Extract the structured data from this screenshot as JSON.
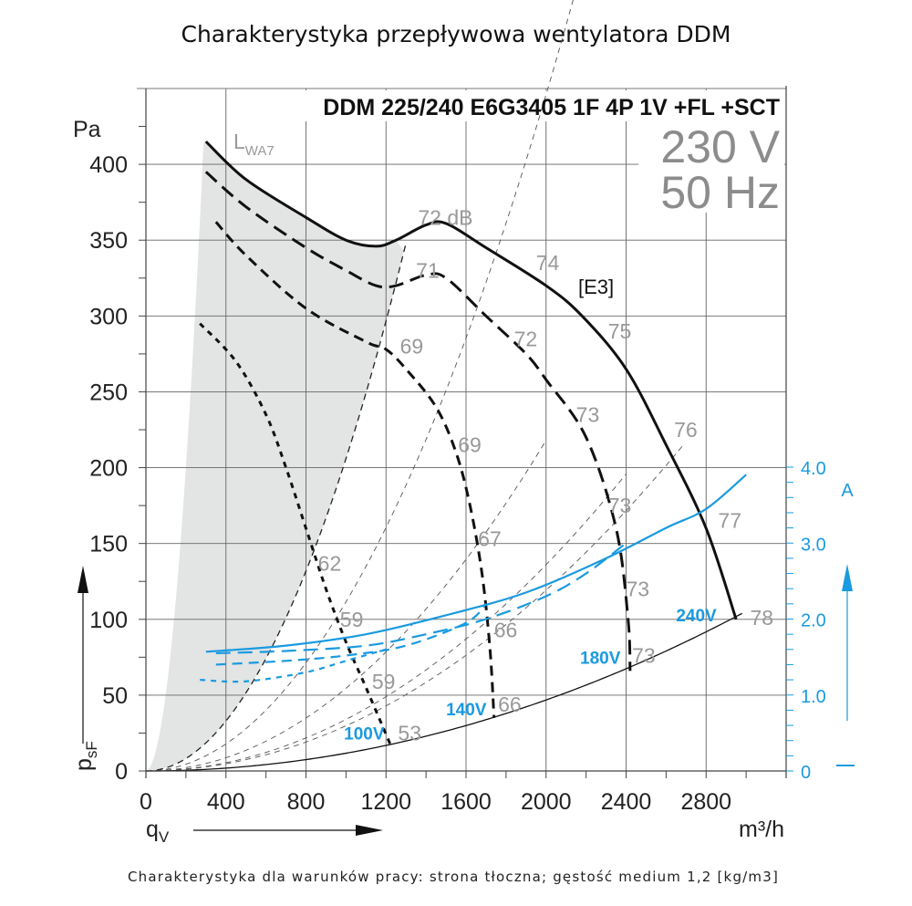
{
  "chart_data": {
    "type": "line",
    "title": "Charakterystyka przepływowa wentylatora DDM",
    "model": "DDM 225/240 E6G3405 1F 4P 1V +FL +SCT",
    "voltage_label": "230 V",
    "frequency_label": "50 Hz",
    "footer": "Charakterystyka dla warunków pracy: strona tłoczna; gęstość medium 1,2 [kg/m3]",
    "xlabel": "qV",
    "xunit": "m³/h",
    "ylabel": "psF",
    "yunit": "Pa",
    "y2unit": "A",
    "xlim": [
      0,
      3200
    ],
    "ylim": [
      0,
      450
    ],
    "y2lim": [
      0,
      4.0
    ],
    "x_ticks": [
      0,
      400,
      800,
      1200,
      1600,
      2000,
      2400,
      2800
    ],
    "y_ticks": [
      0,
      50,
      100,
      150,
      200,
      250,
      300,
      350,
      400
    ],
    "y2_ticks": [
      "0",
      "1.0",
      "2.0",
      "3.0",
      "4.0"
    ],
    "grid": true,
    "lwa_label": "LWA7",
    "operating_point_label": "[E3]",
    "pressure_series": [
      {
        "name": "240V",
        "style": "solid",
        "points": [
          [
            300,
            415
          ],
          [
            500,
            390
          ],
          [
            800,
            365
          ],
          [
            1000,
            350
          ],
          [
            1150,
            346
          ],
          [
            1250,
            350
          ],
          [
            1400,
            360
          ],
          [
            1500,
            361
          ],
          [
            1700,
            345
          ],
          [
            2000,
            320
          ],
          [
            2180,
            300
          ],
          [
            2400,
            265
          ],
          [
            2600,
            215
          ],
          [
            2800,
            160
          ],
          [
            2950,
            100
          ]
        ]
      },
      {
        "name": "180V",
        "style": "long-dash",
        "points": [
          [
            300,
            395
          ],
          [
            500,
            372
          ],
          [
            800,
            345
          ],
          [
            1000,
            330
          ],
          [
            1150,
            320
          ],
          [
            1250,
            320
          ],
          [
            1400,
            327
          ],
          [
            1500,
            325
          ],
          [
            1700,
            300
          ],
          [
            1900,
            275
          ],
          [
            2000,
            258
          ],
          [
            2200,
            220
          ],
          [
            2350,
            160
          ],
          [
            2410,
            100
          ],
          [
            2420,
            66
          ]
        ]
      },
      {
        "name": "140V",
        "style": "medium-dash",
        "points": [
          [
            350,
            362
          ],
          [
            500,
            340
          ],
          [
            800,
            305
          ],
          [
            1100,
            283
          ],
          [
            1200,
            278
          ],
          [
            1300,
            265
          ],
          [
            1450,
            240
          ],
          [
            1550,
            210
          ],
          [
            1620,
            175
          ],
          [
            1680,
            130
          ],
          [
            1720,
            80
          ],
          [
            1740,
            35
          ]
        ]
      },
      {
        "name": "100V",
        "style": "short-dash",
        "points": [
          [
            270,
            295
          ],
          [
            450,
            270
          ],
          [
            600,
            235
          ],
          [
            700,
            200
          ],
          [
            800,
            160
          ],
          [
            900,
            120
          ],
          [
            1000,
            85
          ],
          [
            1100,
            55
          ],
          [
            1220,
            18
          ]
        ]
      }
    ],
    "current_series": [
      {
        "name": "240V",
        "style": "solid",
        "points": [
          [
            300,
            1.57
          ],
          [
            700,
            1.65
          ],
          [
            1100,
            1.8
          ],
          [
            1500,
            2.05
          ],
          [
            1900,
            2.35
          ],
          [
            2300,
            2.8
          ],
          [
            2600,
            3.2
          ],
          [
            2800,
            3.45
          ],
          [
            3000,
            3.9
          ]
        ]
      },
      {
        "name": "180V",
        "style": "long-dash",
        "points": [
          [
            350,
            1.55
          ],
          [
            700,
            1.58
          ],
          [
            1100,
            1.65
          ],
          [
            1400,
            1.8
          ],
          [
            1700,
            2.0
          ],
          [
            2000,
            2.3
          ],
          [
            2200,
            2.6
          ],
          [
            2400,
            3.0
          ]
        ]
      },
      {
        "name": "140V",
        "style": "medium-dash",
        "points": [
          [
            350,
            1.4
          ],
          [
            700,
            1.45
          ],
          [
            1000,
            1.52
          ],
          [
            1300,
            1.65
          ],
          [
            1600,
            1.95
          ],
          [
            1700,
            2.2
          ]
        ]
      },
      {
        "name": "100V",
        "style": "short-dash",
        "points": [
          [
            270,
            1.2
          ],
          [
            500,
            1.18
          ],
          [
            800,
            1.3
          ],
          [
            1000,
            1.45
          ],
          [
            1200,
            1.6
          ]
        ]
      }
    ],
    "system_curves": [
      {
        "name": "system-1",
        "k": 0.0001115,
        "xmax": 3000
      },
      {
        "name": "system-2",
        "k": 5.45e-05,
        "xmax": 2000
      },
      {
        "name": "system-3",
        "k": 3.4e-05,
        "xmax": 2400
      },
      {
        "name": "system-4",
        "k": 2.98e-05,
        "xmax": 2680
      },
      {
        "name": "system-5",
        "k": 1.17e-05,
        "xmax": 2980
      },
      {
        "name": "system-lwa",
        "k": 0.000206,
        "xmax": 1300
      }
    ],
    "voltage_labels": [
      {
        "text": "240V",
        "x": 2650,
        "y": 100
      },
      {
        "text": "180V",
        "x": 2170,
        "y": 72
      },
      {
        "text": "140V",
        "x": 1500,
        "y": 38
      },
      {
        "text": "100V",
        "x": 990,
        "y": 22
      }
    ],
    "db_labels": [
      {
        "text": "72 dB",
        "x": 1360,
        "y": 365
      },
      {
        "text": "74",
        "x": 1950,
        "y": 335
      },
      {
        "text": "75",
        "x": 2310,
        "y": 290
      },
      {
        "text": "76",
        "x": 2640,
        "y": 225
      },
      {
        "text": "77",
        "x": 2860,
        "y": 165
      },
      {
        "text": "78",
        "x": 3020,
        "y": 101
      },
      {
        "text": "71",
        "x": 1350,
        "y": 330
      },
      {
        "text": "72",
        "x": 1840,
        "y": 285
      },
      {
        "text": "73",
        "x": 2150,
        "y": 235
      },
      {
        "text": "73",
        "x": 2310,
        "y": 175
      },
      {
        "text": "73",
        "x": 2400,
        "y": 120
      },
      {
        "text": "73",
        "x": 2430,
        "y": 76
      },
      {
        "text": "69",
        "x": 1270,
        "y": 280
      },
      {
        "text": "69",
        "x": 1560,
        "y": 215
      },
      {
        "text": "67",
        "x": 1660,
        "y": 153
      },
      {
        "text": "66",
        "x": 1740,
        "y": 93
      },
      {
        "text": "66",
        "x": 1760,
        "y": 44
      },
      {
        "text": "62",
        "x": 860,
        "y": 137
      },
      {
        "text": "59",
        "x": 970,
        "y": 100
      },
      {
        "text": "59",
        "x": 1130,
        "y": 59
      },
      {
        "text": "53",
        "x": 1260,
        "y": 25
      }
    ]
  }
}
